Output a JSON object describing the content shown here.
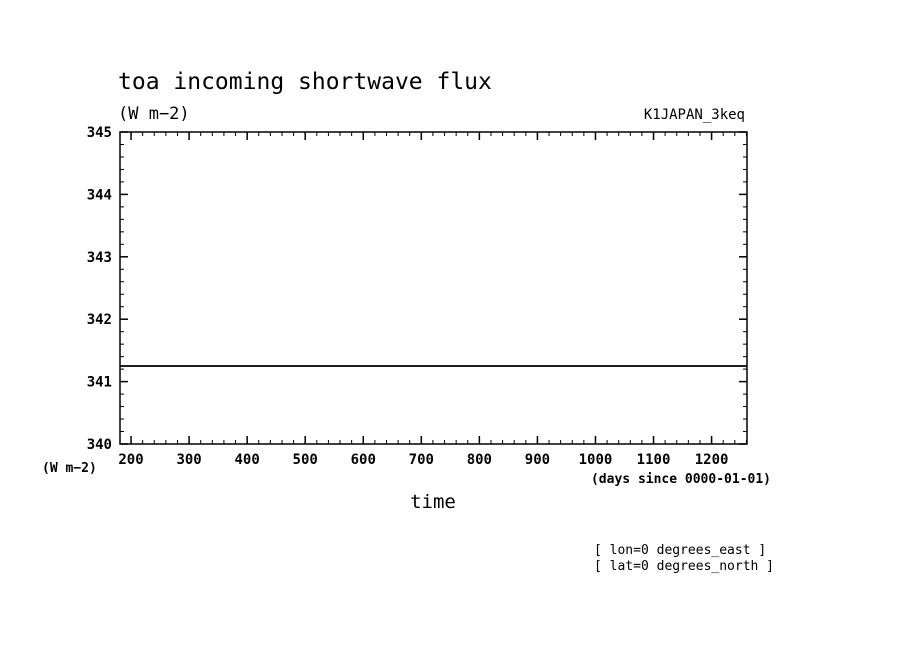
{
  "chart_data": {
    "type": "line",
    "title": "toa incoming shortwave flux",
    "units_label": "(W m−2)",
    "experiment": "K1JAPAN_3keq",
    "xlabel": "time",
    "x_units": "(days since 0000-01-01)",
    "y_axis_units": "(W m−2)",
    "xlim": [
      181,
      1261
    ],
    "ylim": [
      340,
      345
    ],
    "x_ticks": [
      200,
      300,
      400,
      500,
      600,
      700,
      800,
      900,
      1000,
      1100,
      1200
    ],
    "y_ticks": [
      340,
      341,
      342,
      343,
      344,
      345
    ],
    "x_minor_step": 20,
    "y_minor_step": 0.2,
    "series": [
      {
        "x": [
          181,
          1261
        ],
        "y": [
          341.25,
          341.25
        ]
      }
    ],
    "annotations": [
      "[ lon=0 degrees_east ]",
      "[ lat=0 degrees_north ]"
    ]
  }
}
